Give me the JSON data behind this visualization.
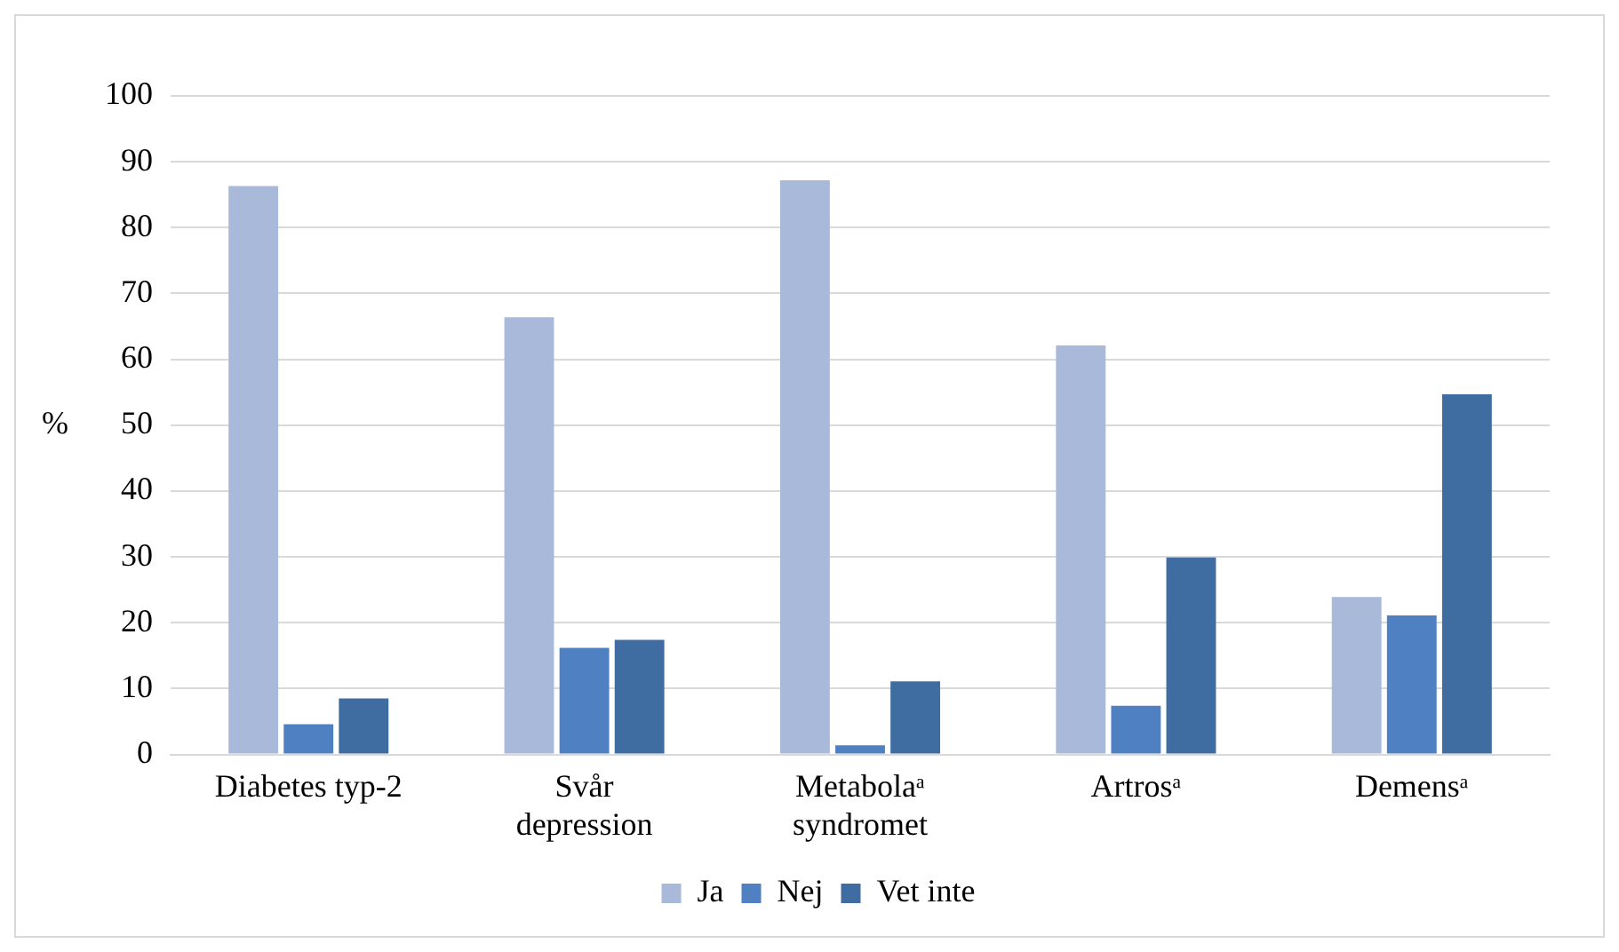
{
  "chart_data": {
    "type": "bar",
    "ylabel": "%",
    "categories": [
      "Diabetes typ-2",
      "Svår depression",
      "Metabolaᵃ syndromet",
      "Artrosᵃ",
      "Demensᵃ"
    ],
    "series": [
      {
        "name": "Ja",
        "color": "#a9b9d9",
        "values": [
          86.3,
          66.4,
          87.2,
          62.1,
          23.9
        ]
      },
      {
        "name": "Nej",
        "color": "#4f81c2",
        "values": [
          4.6,
          16.2,
          1.4,
          7.4,
          21.1
        ]
      },
      {
        "name": "Vet inte",
        "color": "#3f6ca1",
        "values": [
          8.5,
          17.4,
          11.1,
          29.9,
          54.7
        ]
      }
    ],
    "ylim": [
      0,
      100
    ],
    "yticks": [
      0,
      10,
      20,
      30,
      40,
      50,
      60,
      70,
      80,
      90,
      100
    ],
    "grid": "y",
    "legend": "bottom"
  }
}
